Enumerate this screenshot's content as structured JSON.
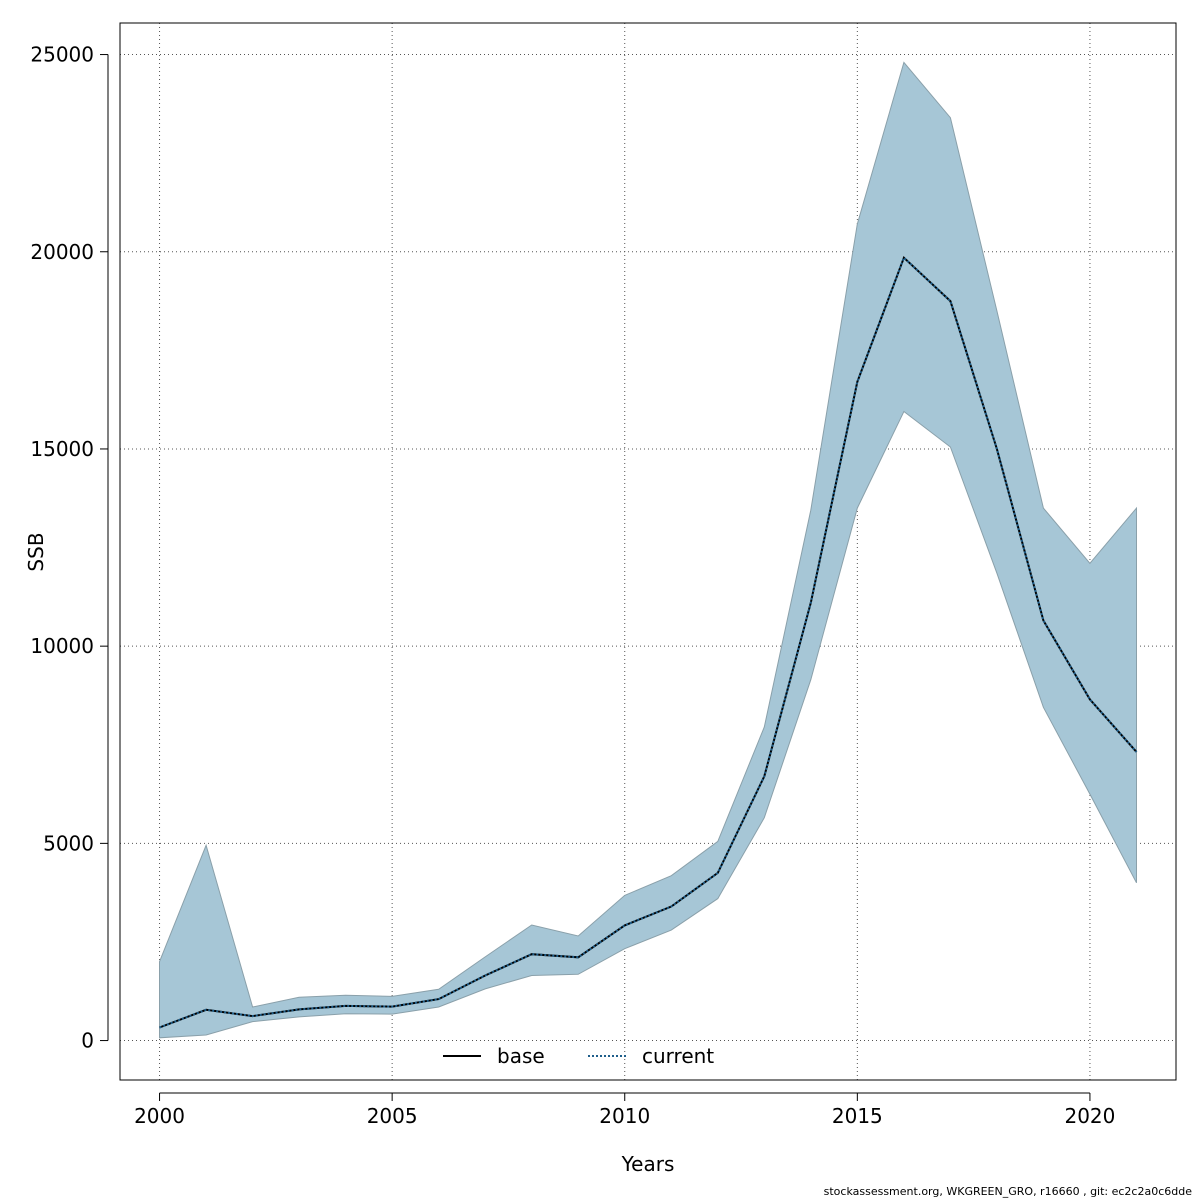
{
  "chart_data": {
    "type": "line",
    "xlabel": "Years",
    "ylabel": "SSB",
    "xlim": [
      1999.15,
      2021.85
    ],
    "ylim": [
      -1000,
      25800
    ],
    "xticks": [
      2000,
      2005,
      2010,
      2015,
      2020
    ],
    "yticks": [
      0,
      5000,
      10000,
      15000,
      20000,
      25000
    ],
    "grid": true,
    "legend_placement": "bottom",
    "x": [
      2000,
      2001,
      2002,
      2003,
      2004,
      2005,
      2006,
      2007,
      2008,
      2009,
      2010,
      2011,
      2012,
      2013,
      2014,
      2015,
      2016,
      2017,
      2018,
      2019,
      2020,
      2021
    ],
    "series": [
      {
        "name": "base",
        "style": "solid",
        "color": "#000000",
        "values": [
          330,
          780,
          620,
          790,
          880,
          860,
          1050,
          1650,
          2190,
          2110,
          2920,
          3400,
          4250,
          6700,
          11100,
          16700,
          19850,
          18750,
          15000,
          10650,
          8650,
          7320
        ]
      },
      {
        "name": "current",
        "style": "dotted",
        "color": "#1f5f8b",
        "values": [
          330,
          780,
          620,
          790,
          880,
          860,
          1050,
          1650,
          2190,
          2110,
          2920,
          3400,
          4250,
          6700,
          11100,
          16700,
          19850,
          18750,
          15000,
          10650,
          8650,
          7320
        ]
      }
    ],
    "confidence_band": {
      "color": "#a6c6d6",
      "edge_color": "#8aa0aa",
      "upper": [
        2000,
        4950,
        850,
        1100,
        1150,
        1120,
        1300,
        2120,
        2930,
        2650,
        3680,
        4180,
        5050,
        7950,
        13450,
        20700,
        24800,
        23400,
        18500,
        13500,
        12100,
        13500
      ],
      "lower": [
        70,
        140,
        480,
        600,
        680,
        670,
        850,
        1310,
        1650,
        1680,
        2330,
        2800,
        3600,
        5650,
        9150,
        13500,
        15950,
        15050,
        11850,
        8450,
        6250,
        4000
      ]
    }
  },
  "legend": {
    "base_label": "base",
    "current_label": "current"
  },
  "footer": "stockassessment.org, WKGREEN_GRO, r16660 , git: ec2c2a0c6dde"
}
